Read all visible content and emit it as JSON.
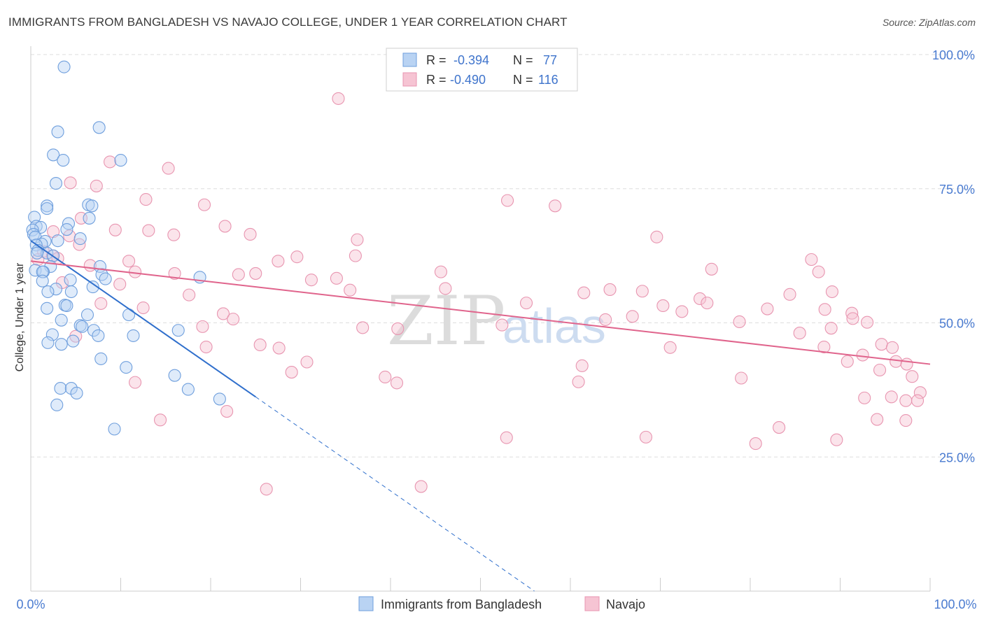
{
  "title": "IMMIGRANTS FROM BANGLADESH VS NAVAJO COLLEGE, UNDER 1 YEAR CORRELATION CHART",
  "source": "Source: ZipAtlas.com",
  "watermark": {
    "zip": "ZIP",
    "atlas": "atlas"
  },
  "colors": {
    "blue_fill": "#b9d3f3",
    "blue_stroke": "#6f9fdd",
    "blue_line": "#2f6fcc",
    "pink_fill": "#f6c4d3",
    "pink_stroke": "#e895b0",
    "pink_line": "#e0648c",
    "grid": "#dddddd",
    "tick_label": "#4a7bd0"
  },
  "legend": {
    "rows": [
      {
        "r_label": "R =",
        "r_value": "-0.394",
        "n_label": "N =",
        "n_value": "77"
      },
      {
        "r_label": "R =",
        "r_value": "-0.490",
        "n_label": "N =",
        "n_value": "116"
      }
    ]
  },
  "chart_data": {
    "type": "scatter",
    "title": "IMMIGRANTS FROM BANGLADESH VS NAVAJO COLLEGE, UNDER 1 YEAR CORRELATION CHART",
    "xlabel": "",
    "ylabel": "College, Under 1 year",
    "xlim": [
      0,
      100
    ],
    "ylim": [
      0,
      100
    ],
    "x_tick_labels": [
      "0.0%",
      "100.0%"
    ],
    "y_ticks": [
      25,
      50,
      75,
      100
    ],
    "y_tick_labels": [
      "25.0%",
      "50.0%",
      "75.0%",
      "100.0%"
    ],
    "grid": true,
    "legend_position": "top-center",
    "series": [
      {
        "name": "Immigrants from Bangladesh",
        "color": "#6f9fdd",
        "r": -0.394,
        "n": 77,
        "trend": {
          "x": [
            0,
            25
          ],
          "y": [
            65.3,
            36.2
          ],
          "dashed_extension_to": [
            56,
            0
          ]
        },
        "points": [
          [
            3.7,
            97.7
          ],
          [
            3.0,
            85.6
          ],
          [
            7.6,
            86.4
          ],
          [
            2.5,
            81.3
          ],
          [
            3.6,
            80.3
          ],
          [
            10.0,
            80.3
          ],
          [
            2.8,
            76.0
          ],
          [
            6.4,
            72.0
          ],
          [
            6.8,
            71.8
          ],
          [
            1.8,
            71.8
          ],
          [
            1.8,
            71.3
          ],
          [
            0.4,
            69.7
          ],
          [
            6.5,
            69.5
          ],
          [
            4.2,
            68.5
          ],
          [
            0.6,
            68.0
          ],
          [
            1.1,
            67.8
          ],
          [
            4.0,
            67.4
          ],
          [
            0.2,
            67.3
          ],
          [
            0.3,
            66.5
          ],
          [
            0.5,
            66.0
          ],
          [
            5.5,
            65.7
          ],
          [
            3.0,
            65.3
          ],
          [
            1.6,
            65.2
          ],
          [
            1.2,
            64.7
          ],
          [
            0.6,
            64.5
          ],
          [
            0.8,
            63.5
          ],
          [
            1.8,
            63.0
          ],
          [
            0.7,
            63.0
          ],
          [
            2.5,
            62.5
          ],
          [
            7.7,
            60.5
          ],
          [
            2.2,
            60.5
          ],
          [
            0.5,
            59.8
          ],
          [
            1.4,
            59.5
          ],
          [
            1.3,
            59.5
          ],
          [
            7.9,
            59.0
          ],
          [
            8.3,
            58.2
          ],
          [
            18.8,
            58.5
          ],
          [
            1.3,
            57.8
          ],
          [
            4.4,
            58.0
          ],
          [
            2.8,
            56.3
          ],
          [
            6.9,
            56.7
          ],
          [
            4.5,
            55.8
          ],
          [
            1.9,
            55.8
          ],
          [
            3.8,
            53.3
          ],
          [
            1.8,
            52.7
          ],
          [
            4.0,
            53.2
          ],
          [
            6.3,
            51.5
          ],
          [
            10.9,
            51.5
          ],
          [
            3.4,
            50.5
          ],
          [
            5.5,
            49.5
          ],
          [
            5.7,
            49.3
          ],
          [
            7.0,
            48.6
          ],
          [
            16.4,
            48.6
          ],
          [
            2.4,
            47.8
          ],
          [
            7.5,
            47.6
          ],
          [
            11.4,
            47.6
          ],
          [
            1.9,
            46.3
          ],
          [
            3.4,
            46.0
          ],
          [
            4.7,
            46.6
          ],
          [
            7.8,
            43.3
          ],
          [
            10.6,
            41.7
          ],
          [
            16.0,
            40.2
          ],
          [
            3.3,
            37.8
          ],
          [
            4.5,
            37.8
          ],
          [
            17.5,
            37.6
          ],
          [
            5.1,
            36.9
          ],
          [
            21.0,
            35.8
          ],
          [
            2.9,
            34.7
          ],
          [
            9.3,
            30.2
          ]
        ]
      },
      {
        "name": "Navajo",
        "color": "#e895b0",
        "r": -0.49,
        "n": 116,
        "trend": {
          "x": [
            0,
            100
          ],
          "y": [
            61.5,
            42.3
          ]
        },
        "points": [
          [
            34.2,
            91.8
          ],
          [
            8.8,
            80.0
          ],
          [
            15.3,
            78.8
          ],
          [
            7.3,
            75.5
          ],
          [
            4.4,
            76.1
          ],
          [
            12.8,
            73.0
          ],
          [
            19.3,
            72.0
          ],
          [
            53.0,
            72.8
          ],
          [
            58.3,
            71.8
          ],
          [
            21.6,
            68.0
          ],
          [
            9.4,
            67.3
          ],
          [
            13.1,
            67.2
          ],
          [
            5.6,
            69.5
          ],
          [
            2.5,
            67.0
          ],
          [
            4.3,
            66.2
          ],
          [
            15.9,
            66.4
          ],
          [
            24.4,
            66.5
          ],
          [
            36.3,
            65.5
          ],
          [
            69.6,
            66.0
          ],
          [
            5.4,
            64.6
          ],
          [
            1.4,
            63.3
          ],
          [
            2.4,
            62.5
          ],
          [
            0.8,
            61.8
          ],
          [
            10.9,
            61.5
          ],
          [
            27.5,
            61.5
          ],
          [
            29.6,
            62.3
          ],
          [
            36.1,
            62.5
          ],
          [
            6.6,
            60.7
          ],
          [
            11.6,
            59.5
          ],
          [
            16.0,
            59.2
          ],
          [
            23.1,
            59.0
          ],
          [
            25.0,
            59.2
          ],
          [
            31.2,
            58.0
          ],
          [
            34.0,
            58.3
          ],
          [
            45.6,
            59.5
          ],
          [
            75.7,
            60.0
          ],
          [
            86.8,
            61.8
          ],
          [
            87.6,
            59.5
          ],
          [
            9.9,
            57.2
          ],
          [
            35.5,
            56.1
          ],
          [
            46.1,
            56.4
          ],
          [
            61.5,
            55.6
          ],
          [
            64.4,
            56.2
          ],
          [
            68.0,
            55.9
          ],
          [
            74.4,
            54.5
          ],
          [
            84.4,
            55.3
          ],
          [
            89.1,
            55.8
          ],
          [
            17.6,
            55.2
          ],
          [
            7.8,
            53.6
          ],
          [
            12.5,
            52.8
          ],
          [
            21.4,
            51.7
          ],
          [
            22.5,
            50.7
          ],
          [
            55.1,
            53.7
          ],
          [
            70.3,
            53.2
          ],
          [
            72.4,
            52.1
          ],
          [
            75.2,
            53.7
          ],
          [
            81.9,
            52.6
          ],
          [
            88.3,
            52.5
          ],
          [
            91.3,
            51.8
          ],
          [
            91.4,
            50.8
          ],
          [
            93.0,
            50.1
          ],
          [
            19.1,
            49.3
          ],
          [
            36.9,
            49.1
          ],
          [
            40.8,
            48.9
          ],
          [
            52.4,
            49.6
          ],
          [
            63.9,
            50.6
          ],
          [
            66.9,
            51.2
          ],
          [
            78.8,
            50.2
          ],
          [
            89.0,
            49.0
          ],
          [
            85.5,
            48.1
          ],
          [
            94.6,
            46.0
          ],
          [
            25.5,
            45.9
          ],
          [
            27.6,
            45.3
          ],
          [
            71.1,
            45.4
          ],
          [
            88.2,
            45.5
          ],
          [
            95.8,
            45.4
          ],
          [
            19.5,
            45.5
          ],
          [
            30.7,
            42.7
          ],
          [
            61.3,
            42.0
          ],
          [
            90.8,
            42.8
          ],
          [
            92.5,
            44.0
          ],
          [
            94.4,
            41.2
          ],
          [
            96.2,
            42.8
          ],
          [
            97.4,
            42.3
          ],
          [
            29.0,
            40.8
          ],
          [
            39.4,
            39.9
          ],
          [
            40.7,
            38.8
          ],
          [
            60.9,
            39.0
          ],
          [
            79.0,
            39.7
          ],
          [
            11.6,
            38.9
          ],
          [
            98.0,
            40.0
          ],
          [
            98.9,
            37.0
          ],
          [
            92.7,
            36.0
          ],
          [
            95.7,
            36.2
          ],
          [
            97.3,
            35.5
          ],
          [
            98.6,
            35.5
          ],
          [
            21.8,
            33.5
          ],
          [
            14.4,
            31.9
          ],
          [
            94.1,
            32.0
          ],
          [
            97.3,
            31.8
          ],
          [
            52.9,
            28.6
          ],
          [
            68.4,
            28.7
          ],
          [
            83.2,
            30.5
          ],
          [
            89.6,
            28.2
          ],
          [
            80.6,
            27.5
          ],
          [
            43.4,
            19.5
          ],
          [
            26.2,
            19.0
          ],
          [
            3.5,
            57.5
          ],
          [
            5.0,
            47.5
          ],
          [
            3.0,
            62.0
          ]
        ]
      }
    ]
  },
  "bottom_legend": [
    {
      "label": "Immigrants from Bangladesh"
    },
    {
      "label": "Navajo"
    }
  ]
}
